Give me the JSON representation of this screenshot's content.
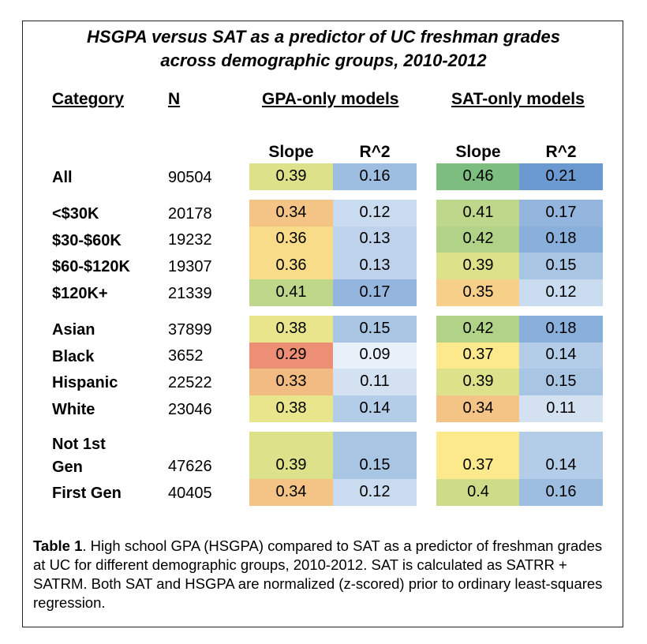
{
  "title_lines": [
    "HSGPA versus SAT as a predictor of UC freshman grades",
    "across demographic groups, 2010-2012"
  ],
  "headers": {
    "category": "Category",
    "n": "N",
    "gpa": "GPA-only models",
    "sat": "SAT-only models",
    "slope": "Slope",
    "r2": "R^2"
  },
  "rows": [
    {
      "label": "All",
      "n": "90504",
      "gs": "0.39",
      "gr": "0.16",
      "ss": "0.46",
      "sr": "0.21"
    },
    {
      "label": "<$30K",
      "n": "20178",
      "gs": "0.34",
      "gr": "0.12",
      "ss": "0.41",
      "sr": "0.17"
    },
    {
      "label": "$30-$60K",
      "n": "19232",
      "gs": "0.36",
      "gr": "0.13",
      "ss": "0.42",
      "sr": "0.18"
    },
    {
      "label": "$60-$120K",
      "n": "19307",
      "gs": "0.36",
      "gr": "0.13",
      "ss": "0.39",
      "sr": "0.15"
    },
    {
      "label": "$120K+",
      "n": "21339",
      "gs": "0.41",
      "gr": "0.17",
      "ss": "0.35",
      "sr": "0.12"
    },
    {
      "label": "Asian",
      "n": "37899",
      "gs": "0.38",
      "gr": "0.15",
      "ss": "0.42",
      "sr": "0.18"
    },
    {
      "label": "Black",
      "n": "3652",
      "gs": "0.29",
      "gr": "0.09",
      "ss": "0.37",
      "sr": "0.14"
    },
    {
      "label": "Hispanic",
      "n": "22522",
      "gs": "0.33",
      "gr": "0.11",
      "ss": "0.39",
      "sr": "0.15"
    },
    {
      "label": "White",
      "n": "23046",
      "gs": "0.38",
      "gr": "0.14",
      "ss": "0.34",
      "sr": "0.11"
    },
    {
      "label": "Not 1st",
      "label2": "Gen",
      "n": "47626",
      "gs": "0.39",
      "gr": "0.15",
      "ss": "0.37",
      "sr": "0.14"
    },
    {
      "label": "First Gen",
      "n": "40405",
      "gs": "0.34",
      "gr": "0.12",
      "ss": "0.4",
      "sr": "0.16"
    }
  ],
  "slope_colors": {
    "0.29": "#ec8f74",
    "0.33": "#f2bb82",
    "0.34": "#f4c486",
    "0.35": "#f6cf88",
    "0.36": "#f8dc8a",
    "0.37": "#fbe98c",
    "0.38": "#e9e58c",
    "0.39": "#dde28a",
    "0.4": "#cedc8a",
    "0.41": "#bfd78a",
    "0.42": "#b1d388",
    "0.46": "#7dbe80"
  },
  "r2_colors": {
    "0.09": "#e8f0f9",
    "0.11": "#d3e1f1",
    "0.12": "#c9dbef",
    "0.13": "#bed3eb",
    "0.14": "#b3cce7",
    "0.15": "#a9c5e4",
    "0.16": "#9ebee1",
    "0.17": "#94b6de",
    "0.18": "#89afdb",
    "0.21": "#6a9ad1"
  },
  "caption": {
    "bold": "Table 1",
    "text": ".  High school GPA (HSGPA) compared to SAT as a predictor of freshman grades at UC for different demographic groups, 2010-2012. SAT is calculated as SATRR + SATRM.  Both SAT and HSGPA are normalized (z-scored) prior to ordinary least-squares regression."
  }
}
